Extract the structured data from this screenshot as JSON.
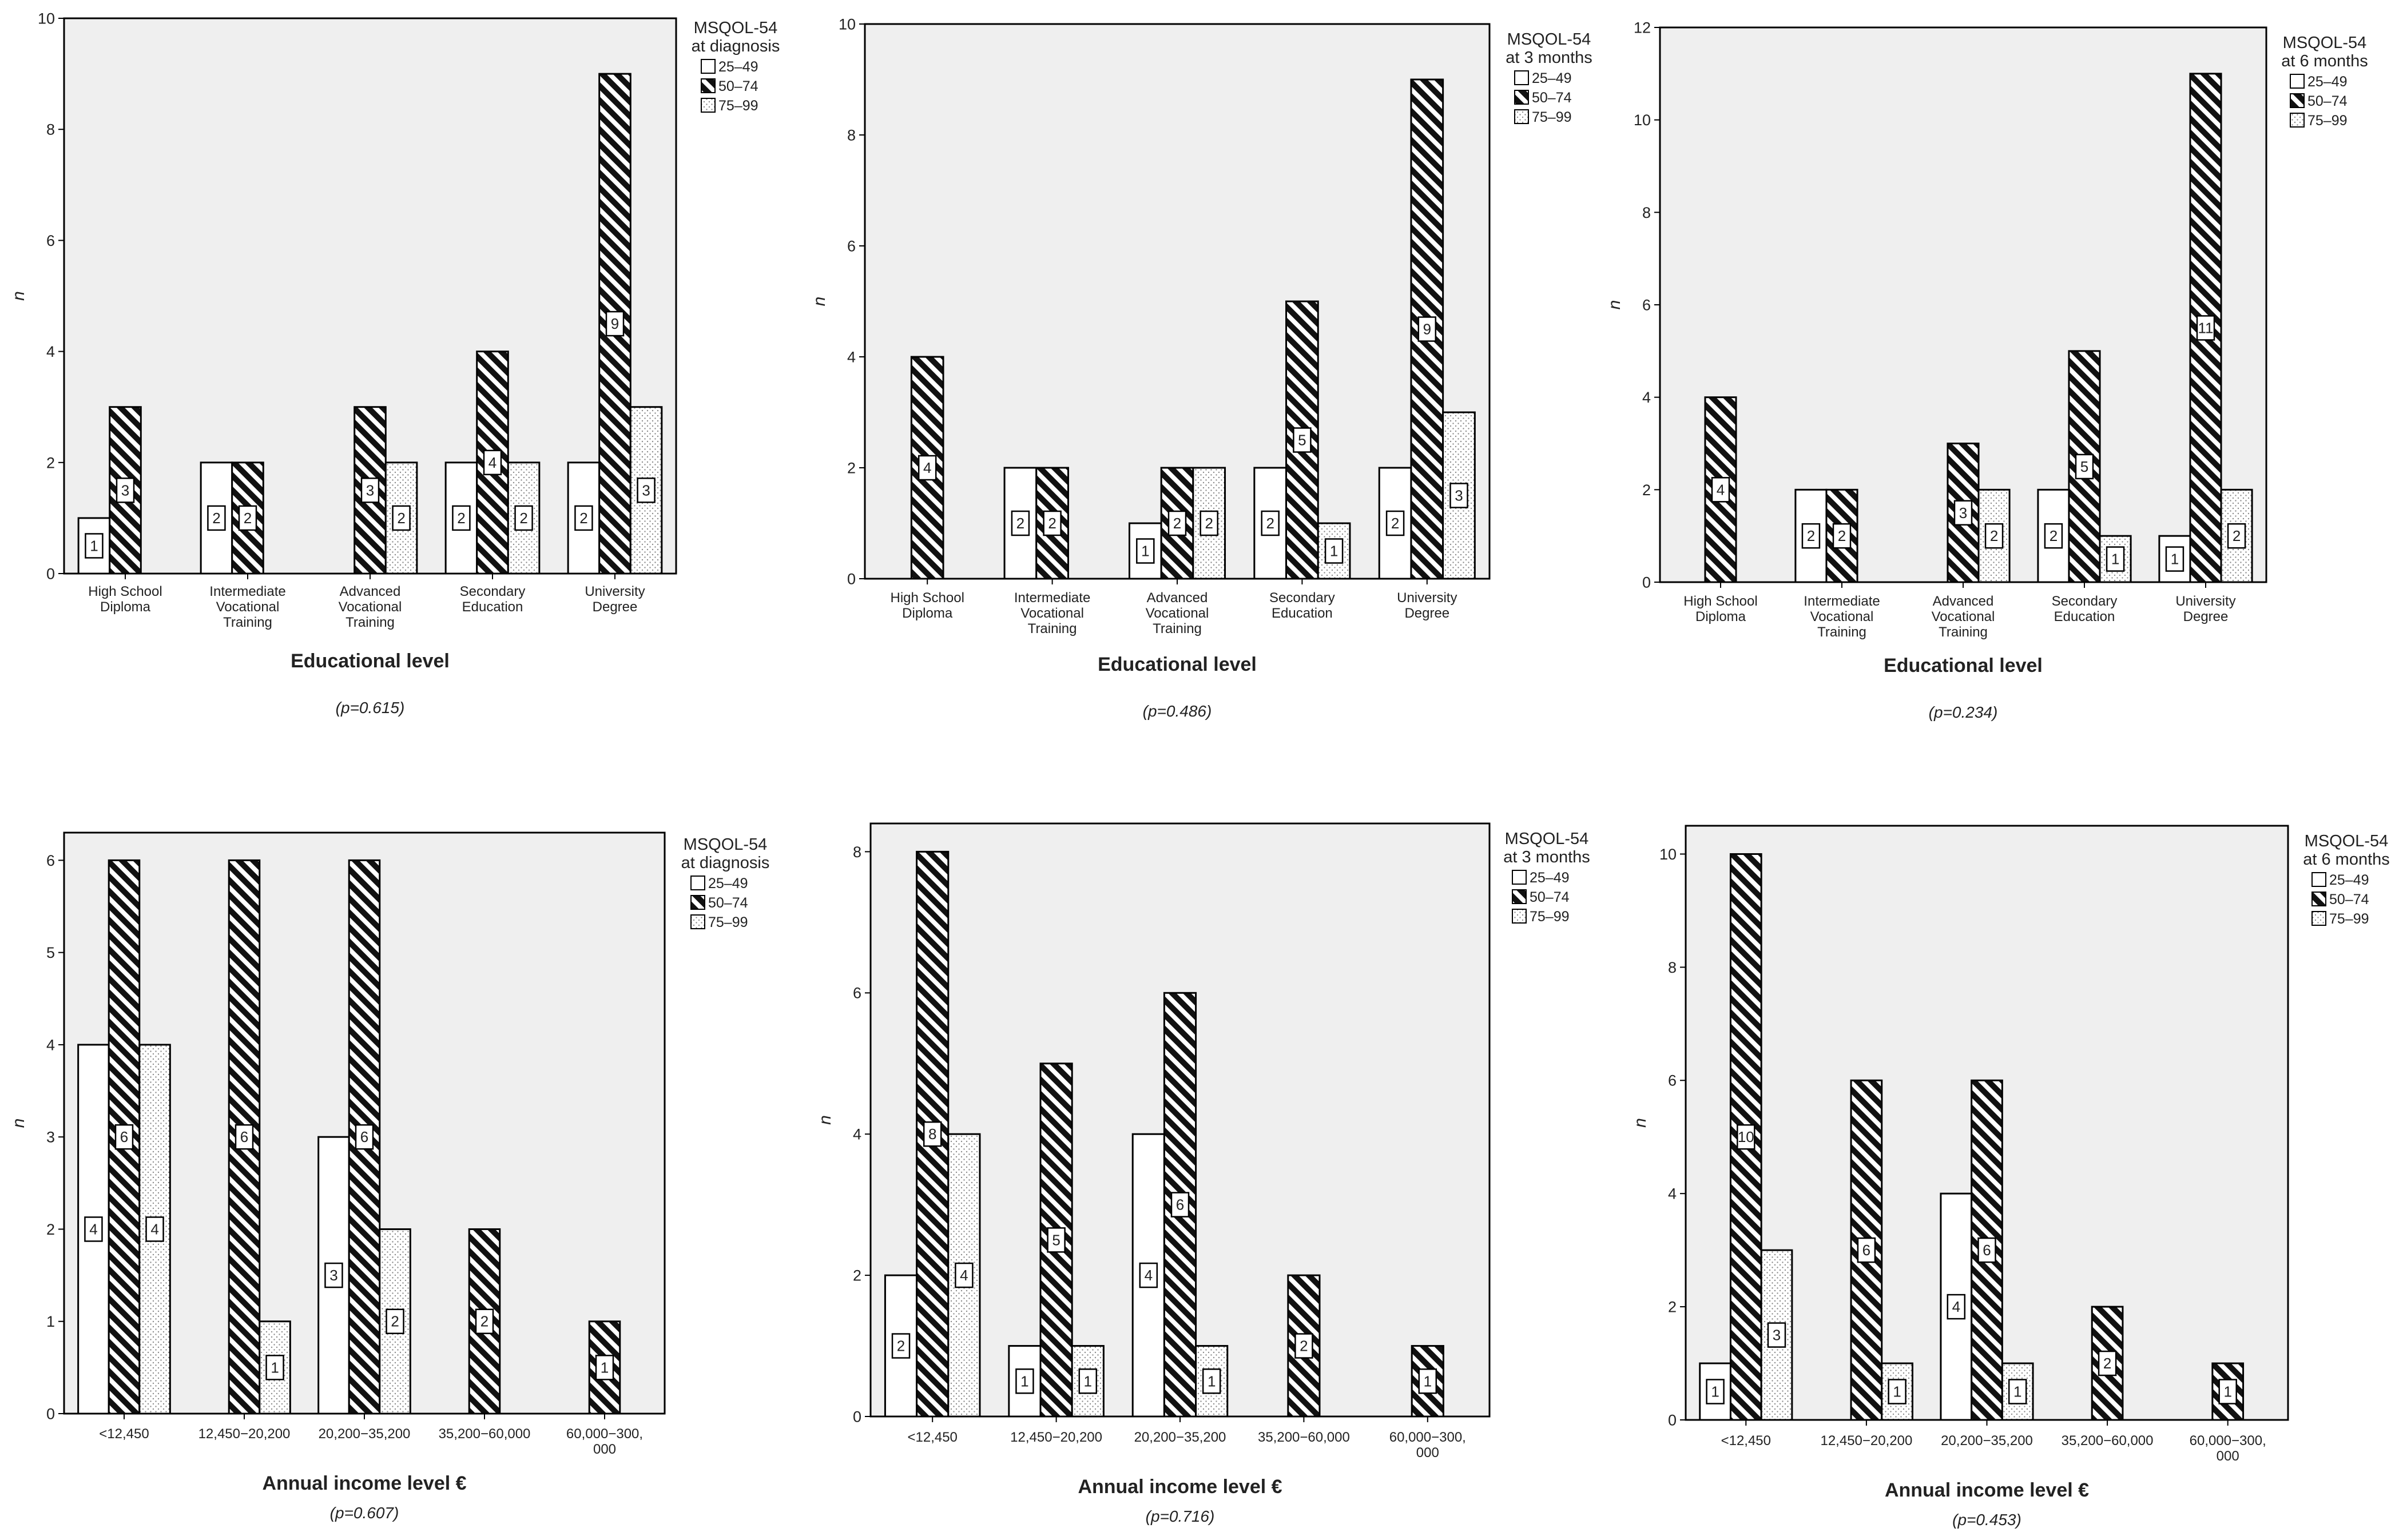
{
  "series_names": [
    "25–49",
    "50–74",
    "75–99"
  ],
  "colors": {
    "plot_bg": "#efefef",
    "bar_fill": "#ffffff",
    "stroke": "#000000",
    "text": "#222222"
  },
  "chart_data": [
    {
      "type": "bar",
      "legend_title": [
        "MSQOL-54",
        "at diagnosis"
      ],
      "xlabel": "Educational level",
      "ylabel": "n",
      "pvalue": "(p=0.615)",
      "ylim": [
        0,
        10
      ],
      "yticks": [
        0,
        2,
        4,
        6,
        8,
        10
      ],
      "categories": [
        [
          "High School",
          "Diploma"
        ],
        [
          "Intermediate",
          "Vocational",
          "Training"
        ],
        [
          "Advanced",
          "Vocational",
          "Training"
        ],
        [
          "Secondary",
          "Education"
        ],
        [
          "University",
          "Degree"
        ]
      ],
      "series": [
        {
          "name": "25–49",
          "values": [
            1,
            2,
            0,
            2,
            2
          ]
        },
        {
          "name": "50–74",
          "values": [
            3,
            2,
            3,
            4,
            9
          ]
        },
        {
          "name": "75–99",
          "values": [
            0,
            0,
            2,
            2,
            3
          ]
        }
      ]
    },
    {
      "type": "bar",
      "legend_title": [
        "MSQOL-54",
        "at 3 months"
      ],
      "xlabel": "Educational level",
      "ylabel": "n",
      "pvalue": "(p=0.486)",
      "ylim": [
        0,
        10
      ],
      "yticks": [
        0,
        2,
        4,
        6,
        8,
        10
      ],
      "categories": [
        [
          "High School",
          "Diploma"
        ],
        [
          "Intermediate",
          "Vocational",
          "Training"
        ],
        [
          "Advanced",
          "Vocational",
          "Training"
        ],
        [
          "Secondary",
          "Education"
        ],
        [
          "University",
          "Degree"
        ]
      ],
      "series": [
        {
          "name": "25–49",
          "values": [
            0,
            2,
            1,
            2,
            2
          ]
        },
        {
          "name": "50–74",
          "values": [
            4,
            2,
            2,
            5,
            9
          ]
        },
        {
          "name": "75–99",
          "values": [
            0,
            0,
            2,
            1,
            3
          ]
        }
      ]
    },
    {
      "type": "bar",
      "legend_title": [
        "MSQOL-54",
        "at 6 months"
      ],
      "xlabel": "Educational level",
      "ylabel": "n",
      "pvalue": "(p=0.234)",
      "ylim": [
        0,
        12
      ],
      "yticks": [
        0,
        2,
        4,
        6,
        8,
        10,
        12
      ],
      "categories": [
        [
          "High School",
          "Diploma"
        ],
        [
          "Intermediate",
          "Vocational",
          "Training"
        ],
        [
          "Advanced",
          "Vocational",
          "Training"
        ],
        [
          "Secondary",
          "Education"
        ],
        [
          "University",
          "Degree"
        ]
      ],
      "series": [
        {
          "name": "25–49",
          "values": [
            0,
            2,
            0,
            2,
            1
          ]
        },
        {
          "name": "50–74",
          "values": [
            4,
            2,
            3,
            5,
            11
          ]
        },
        {
          "name": "75–99",
          "values": [
            0,
            0,
            2,
            1,
            2
          ]
        }
      ]
    },
    {
      "type": "bar",
      "legend_title": [
        "MSQOL-54",
        "at diagnosis"
      ],
      "xlabel": "Annual income level €",
      "ylabel": "n",
      "pvalue": "(p=0.607)",
      "ylim": [
        0,
        6.3
      ],
      "yticks": [
        0,
        1,
        2,
        3,
        4,
        5,
        6
      ],
      "categories": [
        [
          "<12,450"
        ],
        [
          "12,450−20,200"
        ],
        [
          "20,200−35,200"
        ],
        [
          "35,200−60,000"
        ],
        [
          "60,000−300,",
          "000"
        ]
      ],
      "series": [
        {
          "name": "25–49",
          "values": [
            4,
            0,
            3,
            0,
            0
          ]
        },
        {
          "name": "50–74",
          "values": [
            6,
            6,
            6,
            2,
            1
          ]
        },
        {
          "name": "75–99",
          "values": [
            4,
            1,
            2,
            0,
            0
          ]
        }
      ]
    },
    {
      "type": "bar",
      "legend_title": [
        "MSQOL-54",
        "at 3 months"
      ],
      "xlabel": "Annual income level €",
      "ylabel": "n",
      "pvalue": "(p=0.716)",
      "ylim": [
        0,
        8.4
      ],
      "yticks": [
        0,
        2,
        4,
        6,
        8
      ],
      "categories": [
        [
          "<12,450"
        ],
        [
          "12,450−20,200"
        ],
        [
          "20,200−35,200"
        ],
        [
          "35,200−60,000"
        ],
        [
          "60,000−300,",
          "000"
        ]
      ],
      "series": [
        {
          "name": "25–49",
          "values": [
            2,
            1,
            4,
            0,
            0
          ]
        },
        {
          "name": "50–74",
          "values": [
            8,
            5,
            6,
            2,
            1
          ]
        },
        {
          "name": "75–99",
          "values": [
            4,
            1,
            1,
            0,
            0
          ]
        }
      ]
    },
    {
      "type": "bar",
      "legend_title": [
        "MSQOL-54",
        "at 6 months"
      ],
      "xlabel": "Annual income level €",
      "ylabel": "n",
      "pvalue": "(p=0.453)",
      "ylim": [
        0,
        10.5
      ],
      "yticks": [
        0,
        2,
        4,
        6,
        8,
        10
      ],
      "categories": [
        [
          "<12,450"
        ],
        [
          "12,450−20,200"
        ],
        [
          "20,200−35,200"
        ],
        [
          "35,200−60,000"
        ],
        [
          "60,000−300,",
          "000"
        ]
      ],
      "series": [
        {
          "name": "25–49",
          "values": [
            1,
            0,
            4,
            0,
            0
          ]
        },
        {
          "name": "50–74",
          "values": [
            10,
            6,
            6,
            2,
            1
          ]
        },
        {
          "name": "75–99",
          "values": [
            3,
            1,
            1,
            0,
            0
          ]
        }
      ]
    }
  ]
}
